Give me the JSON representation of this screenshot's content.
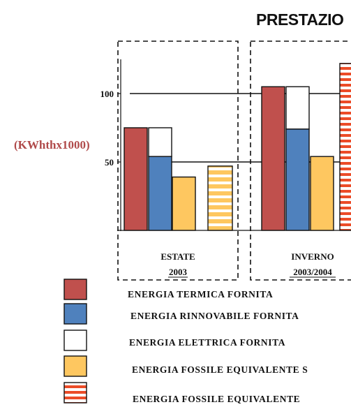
{
  "chart_data": {
    "type": "bar",
    "title": "PRESTAZIO",
    "ylabel": "(KWhthx1000)",
    "yticks": [
      {
        "value": 100,
        "label": "100"
      },
      {
        "value": 50,
        "label": "50"
      }
    ],
    "ylim": [
      0,
      125
    ],
    "groups": [
      {
        "label_line1": "ESTATE",
        "label_line2": "2003",
        "bars": [
          {
            "series": "termica",
            "value": 75
          },
          {
            "series": "rinnovabile",
            "total": 75,
            "base": 54
          },
          {
            "series": "fossile",
            "value": 39
          },
          {
            "series": "fossile_striped",
            "value": 47
          }
        ]
      },
      {
        "label_line1": "INVERNO",
        "label_line2": "2003/2004",
        "bars": [
          {
            "series": "termica",
            "value": 105
          },
          {
            "series": "rinnovabile",
            "total": 105,
            "base": 74
          },
          {
            "series": "fossile",
            "value": 54
          },
          {
            "series": "fossile_striped",
            "value": 122
          }
        ]
      }
    ],
    "legend": [
      {
        "key": "termica",
        "label": "ENERGIA  TERMICA  FORNITA"
      },
      {
        "key": "rinnovabile",
        "label": "ENERGIA  RINNOVABILE  FORNITA"
      },
      {
        "key": "elettrica",
        "label": "ENERGIA  ELETTRICA  FORNITA"
      },
      {
        "key": "fossile",
        "label": "ENERGIA  FOSSILE  EQUIVALENTE  S"
      },
      {
        "key": "fossile_striped",
        "label": "ENERGIA  FOSSILE  EQUIVALENTE"
      }
    ],
    "colors": {
      "termica": "#c0504d",
      "rinnovabile": "#4f81bd",
      "elettrica": "#ffffff",
      "fossile": "#fec760",
      "stripe_a": "#ec4c28",
      "stripe_b_summer": "#fec760",
      "stripe_b_winter": "#ffffff"
    }
  }
}
